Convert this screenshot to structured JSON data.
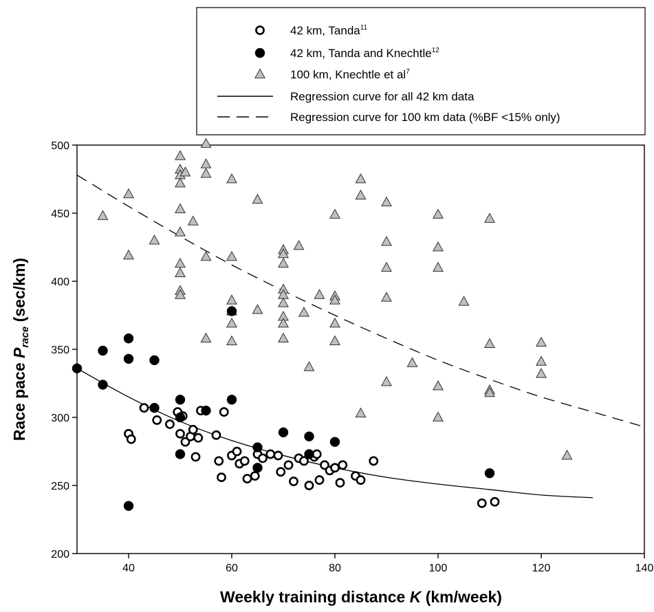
{
  "chart_data": {
    "type": "scatter",
    "xlabel_parts": [
      "Weekly training distance ",
      "K",
      " (km/week)"
    ],
    "ylabel_parts": [
      "Race pace ",
      "P",
      "race",
      " (sec/km)"
    ],
    "xlim": [
      30,
      140
    ],
    "ylim": [
      200,
      500
    ],
    "xticks": [
      40,
      60,
      80,
      100,
      120,
      140
    ],
    "yticks": [
      200,
      250,
      300,
      350,
      400,
      450,
      500
    ],
    "grid": false,
    "legend_position": "top-right",
    "series": [
      {
        "name": "42 km, Tanda",
        "name_sup": "11",
        "marker": "open-circle",
        "color": "#000000",
        "points": [
          [
            40,
            288
          ],
          [
            40.5,
            284
          ],
          [
            43,
            307
          ],
          [
            45.5,
            298
          ],
          [
            48,
            295
          ],
          [
            49.5,
            304
          ],
          [
            50,
            288
          ],
          [
            50.5,
            301
          ],
          [
            51,
            282
          ],
          [
            52,
            286
          ],
          [
            52.5,
            291
          ],
          [
            53,
            271
          ],
          [
            53.5,
            285
          ],
          [
            54,
            305
          ],
          [
            57,
            287
          ],
          [
            57.5,
            268
          ],
          [
            58,
            256
          ],
          [
            58.5,
            304
          ],
          [
            60,
            272
          ],
          [
            61,
            275
          ],
          [
            61.5,
            266
          ],
          [
            62.5,
            268
          ],
          [
            63,
            255
          ],
          [
            64.5,
            257
          ],
          [
            65,
            273
          ],
          [
            66,
            270
          ],
          [
            67.5,
            273
          ],
          [
            69,
            272
          ],
          [
            69.5,
            260
          ],
          [
            71,
            265
          ],
          [
            72,
            253
          ],
          [
            73,
            270
          ],
          [
            74,
            268
          ],
          [
            75,
            250
          ],
          [
            76,
            271
          ],
          [
            76.5,
            273
          ],
          [
            77,
            254
          ],
          [
            78,
            265
          ],
          [
            79,
            261
          ],
          [
            80,
            263
          ],
          [
            81,
            252
          ],
          [
            81.5,
            265
          ],
          [
            84,
            257
          ],
          [
            85,
            254
          ],
          [
            87.5,
            268
          ],
          [
            108.5,
            237
          ],
          [
            111,
            238
          ]
        ]
      },
      {
        "name": "42 km, Tanda and Knechtle",
        "name_sup": "12",
        "marker": "filled-circle",
        "color": "#000000",
        "points": [
          [
            30,
            336
          ],
          [
            35,
            349
          ],
          [
            35,
            324
          ],
          [
            40,
            358
          ],
          [
            40,
            343
          ],
          [
            40,
            235
          ],
          [
            45,
            342
          ],
          [
            45,
            307
          ],
          [
            50,
            313
          ],
          [
            50,
            300
          ],
          [
            50,
            273
          ],
          [
            55,
            305
          ],
          [
            60,
            378
          ],
          [
            60,
            313
          ],
          [
            65,
            278
          ],
          [
            65,
            263
          ],
          [
            70,
            289
          ],
          [
            75,
            286
          ],
          [
            75,
            273
          ],
          [
            80,
            282
          ],
          [
            110,
            259
          ]
        ]
      },
      {
        "name": "100 km, Knechtle et al",
        "name_sup": "7",
        "marker": "triangle",
        "color": "#c0c0c0",
        "points": [
          [
            35,
            448
          ],
          [
            40,
            464
          ],
          [
            40,
            419
          ],
          [
            45,
            430
          ],
          [
            50,
            492
          ],
          [
            50,
            482
          ],
          [
            50,
            478
          ],
          [
            50,
            472
          ],
          [
            50,
            453
          ],
          [
            50,
            436
          ],
          [
            50,
            413
          ],
          [
            50,
            406
          ],
          [
            50,
            393
          ],
          [
            50,
            390
          ],
          [
            51,
            480
          ],
          [
            52.5,
            444
          ],
          [
            55,
            501
          ],
          [
            55,
            486
          ],
          [
            55,
            479
          ],
          [
            55,
            418
          ],
          [
            55,
            358
          ],
          [
            60,
            475
          ],
          [
            60,
            418
          ],
          [
            60,
            386
          ],
          [
            60,
            378
          ],
          [
            60,
            369
          ],
          [
            60,
            356
          ],
          [
            65,
            460
          ],
          [
            65,
            379
          ],
          [
            70,
            423
          ],
          [
            70,
            420
          ],
          [
            70,
            413
          ],
          [
            70,
            394
          ],
          [
            70,
            390
          ],
          [
            70,
            384
          ],
          [
            70,
            374
          ],
          [
            70,
            369
          ],
          [
            70,
            358
          ],
          [
            73,
            426
          ],
          [
            74,
            377
          ],
          [
            75,
            337
          ],
          [
            77,
            390
          ],
          [
            80,
            449
          ],
          [
            80,
            389
          ],
          [
            80,
            386
          ],
          [
            80,
            369
          ],
          [
            80,
            356
          ],
          [
            85,
            475
          ],
          [
            85,
            463
          ],
          [
            85,
            303
          ],
          [
            90,
            458
          ],
          [
            90,
            429
          ],
          [
            90,
            410
          ],
          [
            90,
            388
          ],
          [
            90,
            326
          ],
          [
            95,
            340
          ],
          [
            100,
            449
          ],
          [
            100,
            425
          ],
          [
            100,
            410
          ],
          [
            100,
            323
          ],
          [
            100,
            300
          ],
          [
            105,
            385
          ],
          [
            110,
            446
          ],
          [
            110,
            354
          ],
          [
            110,
            320
          ],
          [
            110,
            318
          ],
          [
            120,
            355
          ],
          [
            120,
            341
          ],
          [
            120,
            332
          ],
          [
            125,
            272
          ]
        ]
      },
      {
        "name": "Regression curve for all 42 km data",
        "line_style": "solid",
        "color": "#000000",
        "points": [
          [
            30,
            336
          ],
          [
            40,
            315
          ],
          [
            50,
            297
          ],
          [
            60,
            283
          ],
          [
            70,
            272
          ],
          [
            80,
            263
          ],
          [
            90,
            256
          ],
          [
            100,
            251
          ],
          [
            110,
            247
          ],
          [
            120,
            243
          ],
          [
            130,
            241
          ]
        ]
      },
      {
        "name": "Regression curve for 100 km data (%BF <15% only)",
        "line_style": "dashed",
        "color": "#000000",
        "points": [
          [
            30,
            478
          ],
          [
            40,
            455
          ],
          [
            50,
            433
          ],
          [
            60,
            412
          ],
          [
            70,
            393
          ],
          [
            80,
            375
          ],
          [
            90,
            358
          ],
          [
            100,
            342
          ],
          [
            110,
            328
          ],
          [
            120,
            315
          ],
          [
            130,
            304
          ],
          [
            140,
            293
          ]
        ]
      }
    ]
  }
}
